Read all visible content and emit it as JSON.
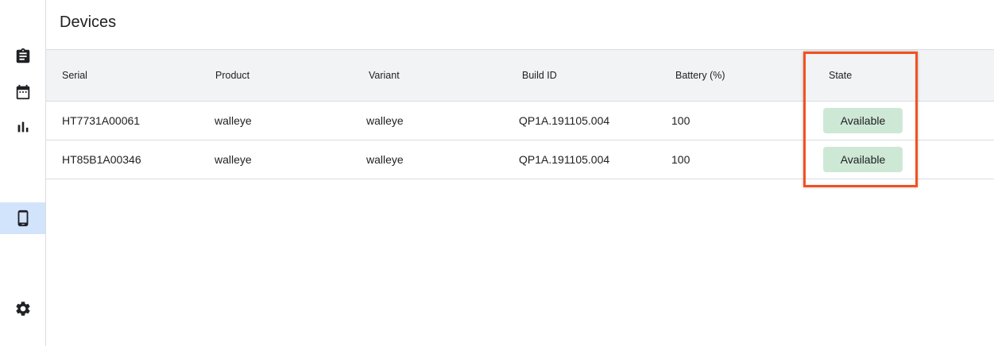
{
  "page_title": "Devices",
  "sidebar": {
    "items": [
      {
        "icon": "clipboard-icon",
        "active": false
      },
      {
        "icon": "calendar-icon",
        "active": false
      },
      {
        "icon": "bar-chart-icon",
        "active": false
      },
      {
        "icon": "phone-icon",
        "active": true
      },
      {
        "icon": "gear-icon",
        "active": false
      }
    ]
  },
  "table": {
    "headers": [
      "Serial",
      "Product",
      "Variant",
      "Build ID",
      "Battery (%)",
      "State"
    ],
    "rows": [
      [
        "HT7731A00061",
        "walleye",
        "walleye",
        "QP1A.191105.004",
        "100",
        "Available"
      ],
      [
        "HT85B1A00346",
        "walleye",
        "walleye",
        "QP1A.191105.004",
        "100",
        "Available"
      ]
    ]
  },
  "colors": {
    "highlight": "#f4511e",
    "badge": "#cee8d6",
    "active_nav": "#d2e3fc"
  }
}
